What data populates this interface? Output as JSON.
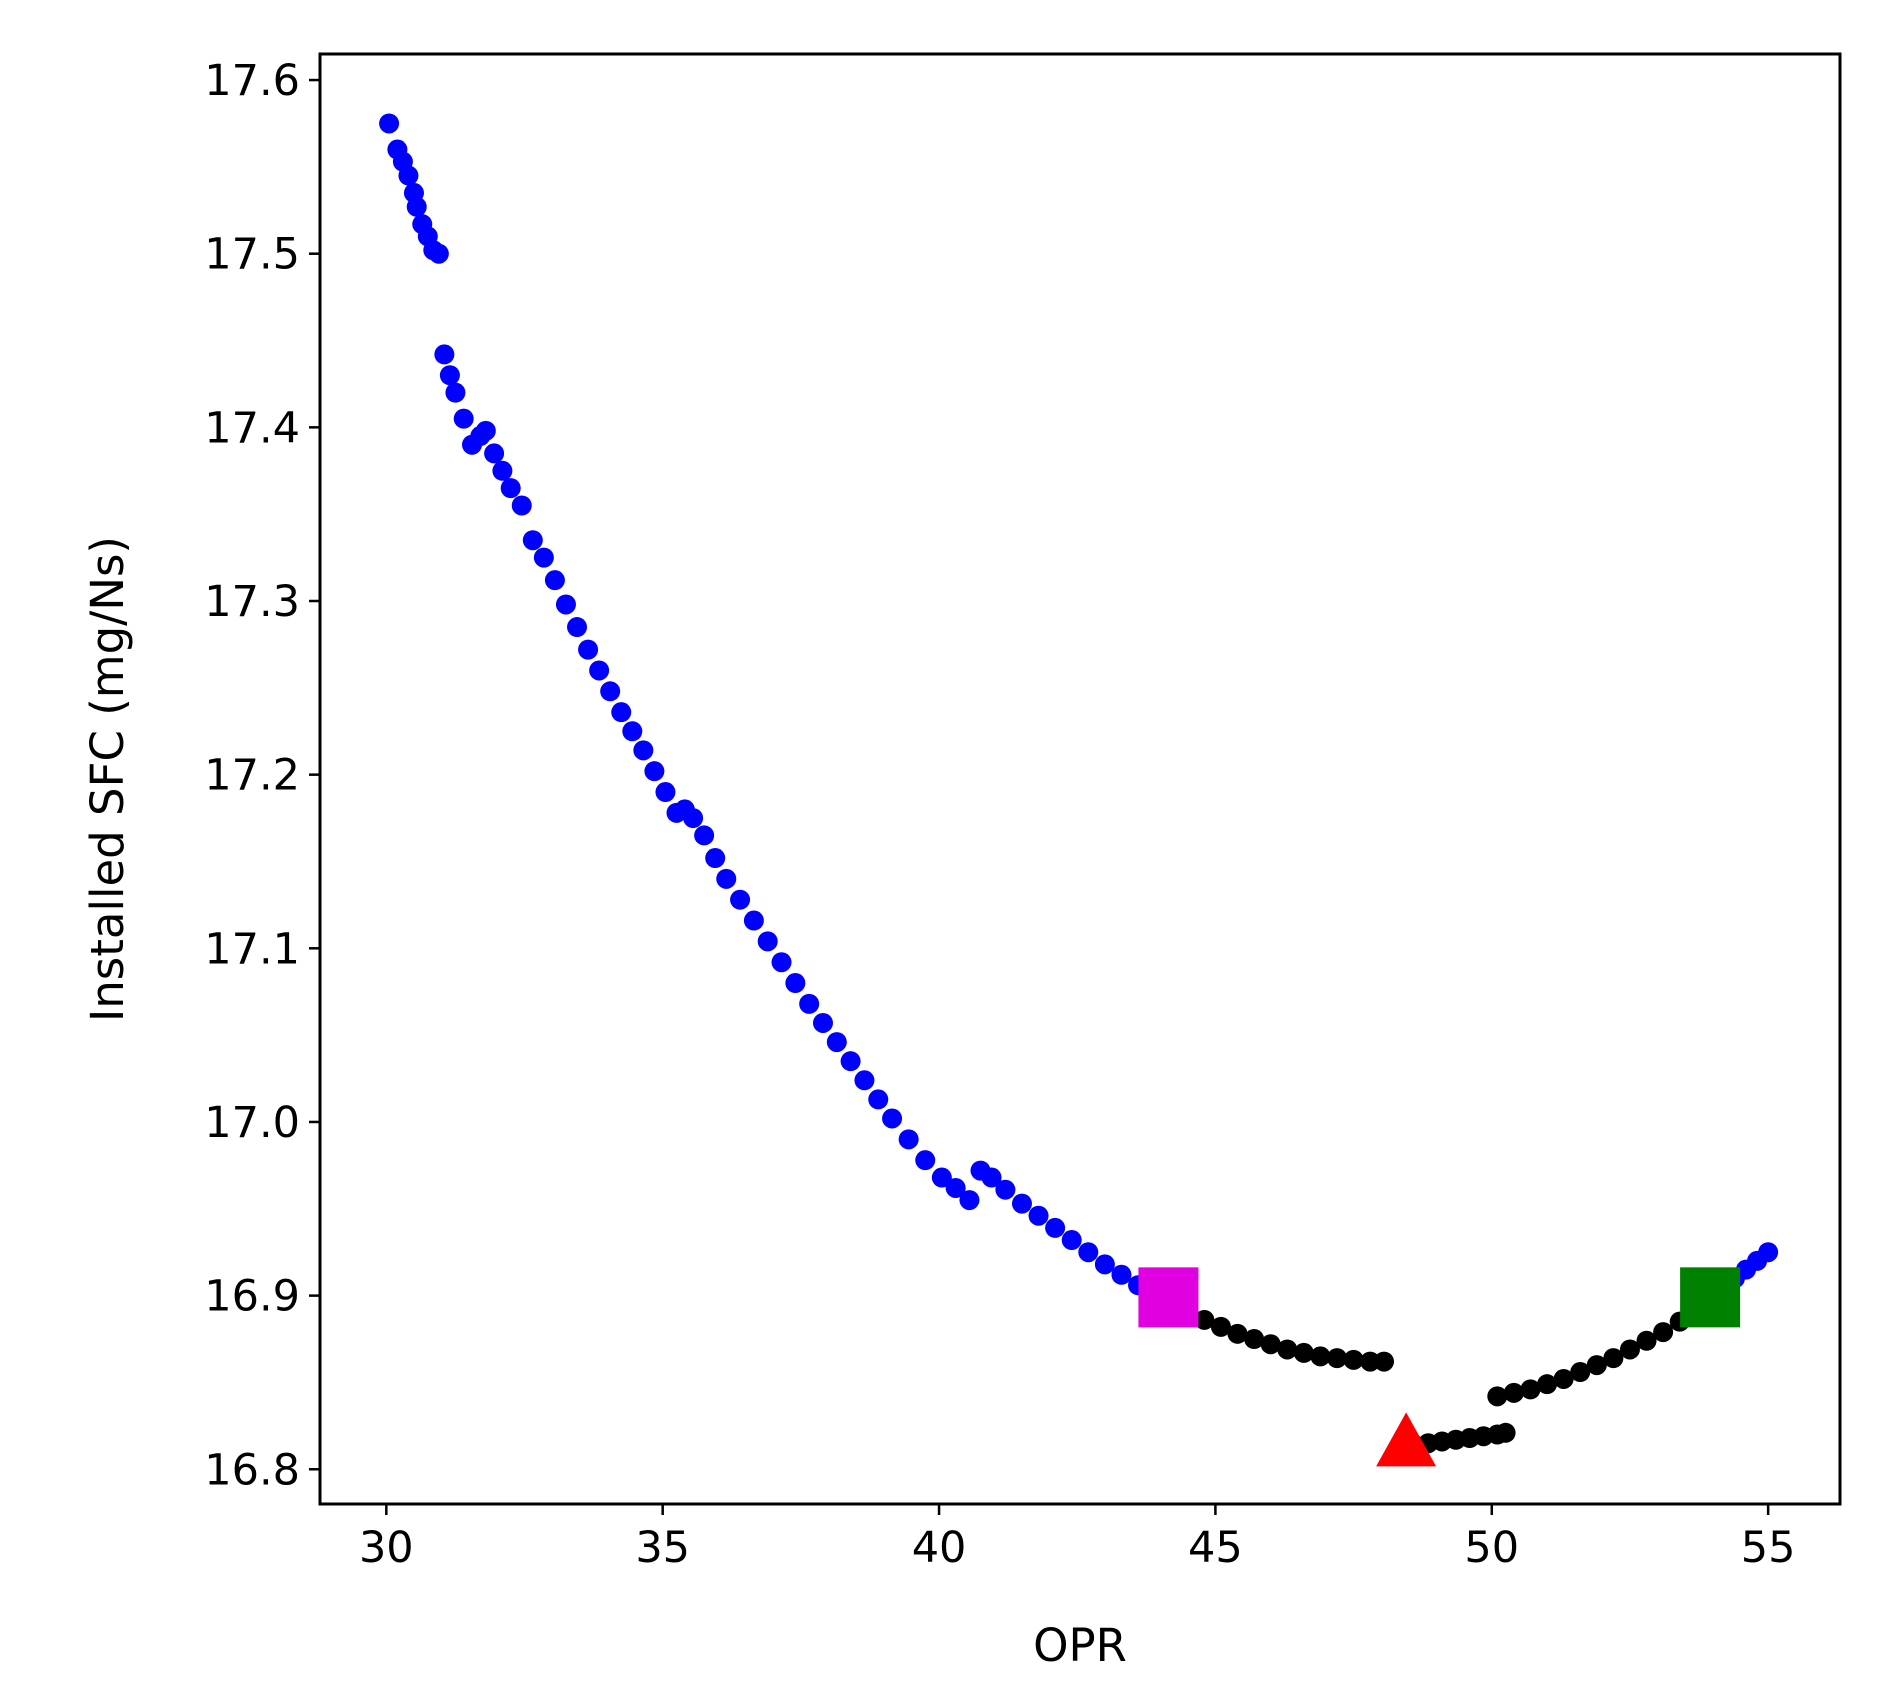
{
  "chart_data": {
    "type": "scatter",
    "title": "",
    "xlabel": "OPR",
    "ylabel": "Installed SFC (mg/Ns)",
    "xlim": [
      28.8,
      56.3
    ],
    "ylim": [
      16.78,
      17.615
    ],
    "grid": false,
    "legend": "none",
    "xticks": [
      30,
      35,
      40,
      45,
      50,
      55
    ],
    "yticks": [
      16.8,
      16.9,
      17.0,
      17.1,
      17.2,
      17.3,
      17.4,
      17.5,
      17.6
    ],
    "xtick_labels": [
      "30",
      "35",
      "40",
      "45",
      "50",
      "55"
    ],
    "ytick_labels": [
      "16.8",
      "16.9",
      "17.0",
      "17.1",
      "17.2",
      "17.3",
      "17.4",
      "17.5",
      "17.6"
    ],
    "series": [
      {
        "color": "#0000ff",
        "marker": "circle",
        "x": [
          30.05,
          30.2,
          30.3,
          30.4,
          30.5,
          30.55,
          30.65,
          30.75,
          30.85,
          30.95,
          31.05,
          31.15,
          31.25,
          31.4,
          31.55,
          31.7,
          31.8,
          31.95,
          32.1,
          32.25,
          32.45,
          32.65,
          32.85,
          33.05,
          33.25,
          33.45,
          33.65,
          33.85,
          34.05,
          34.25,
          34.45,
          34.65,
          34.85,
          35.05,
          35.25,
          35.4,
          35.55,
          35.75,
          35.95,
          36.15,
          36.4,
          36.65,
          36.9,
          37.15,
          37.4,
          37.65,
          37.9,
          38.15,
          38.4,
          38.65,
          38.9,
          39.15,
          39.45,
          39.75,
          40.05,
          40.3,
          40.55,
          40.75,
          40.95,
          41.2,
          41.5,
          41.8,
          42.1,
          42.4,
          42.7,
          43.0,
          43.3,
          43.6,
          43.85,
          44.05,
          54.2,
          54.4,
          54.6,
          54.8,
          55.0
        ],
        "y": [
          17.575,
          17.56,
          17.553,
          17.545,
          17.535,
          17.527,
          17.517,
          17.51,
          17.502,
          17.5,
          17.442,
          17.43,
          17.42,
          17.405,
          17.39,
          17.395,
          17.398,
          17.385,
          17.375,
          17.365,
          17.355,
          17.335,
          17.325,
          17.312,
          17.298,
          17.285,
          17.272,
          17.26,
          17.248,
          17.236,
          17.225,
          17.214,
          17.202,
          17.19,
          17.178,
          17.18,
          17.175,
          17.165,
          17.152,
          17.14,
          17.128,
          17.116,
          17.104,
          17.092,
          17.08,
          17.068,
          17.057,
          17.046,
          17.035,
          17.024,
          17.013,
          17.002,
          16.99,
          16.978,
          16.968,
          16.962,
          16.955,
          16.972,
          16.968,
          16.961,
          16.953,
          16.946,
          16.939,
          16.932,
          16.925,
          16.918,
          16.912,
          16.906,
          16.901,
          16.898,
          16.904,
          16.91,
          16.915,
          16.92,
          16.925
        ]
      },
      {
        "color": "#000000",
        "marker": "circle",
        "x": [
          44.2,
          44.5,
          44.8,
          45.1,
          45.4,
          45.7,
          46.0,
          46.3,
          46.6,
          46.9,
          47.2,
          47.5,
          47.8,
          48.05,
          48.6,
          48.85,
          49.1,
          49.35,
          49.6,
          49.85,
          50.1,
          50.25,
          50.1,
          50.4,
          50.7,
          51.0,
          51.3,
          51.6,
          51.9,
          52.2,
          52.5,
          52.8,
          53.1,
          53.4,
          53.7,
          54.0
        ],
        "y": [
          16.897,
          16.891,
          16.886,
          16.882,
          16.878,
          16.875,
          16.872,
          16.869,
          16.867,
          16.865,
          16.864,
          16.863,
          16.862,
          16.862,
          16.814,
          16.815,
          16.816,
          16.817,
          16.818,
          16.819,
          16.82,
          16.821,
          16.842,
          16.844,
          16.846,
          16.849,
          16.852,
          16.856,
          16.86,
          16.864,
          16.869,
          16.874,
          16.879,
          16.885,
          16.891,
          16.897
        ]
      }
    ],
    "highlights": [
      {
        "color": "#e000e0",
        "marker": "square",
        "x": 44.15,
        "y": 16.899
      },
      {
        "color": "#ff0000",
        "marker": "triangle",
        "x": 48.45,
        "y": 16.812
      },
      {
        "color": "#008000",
        "marker": "square",
        "x": 53.95,
        "y": 16.899
      }
    ]
  }
}
